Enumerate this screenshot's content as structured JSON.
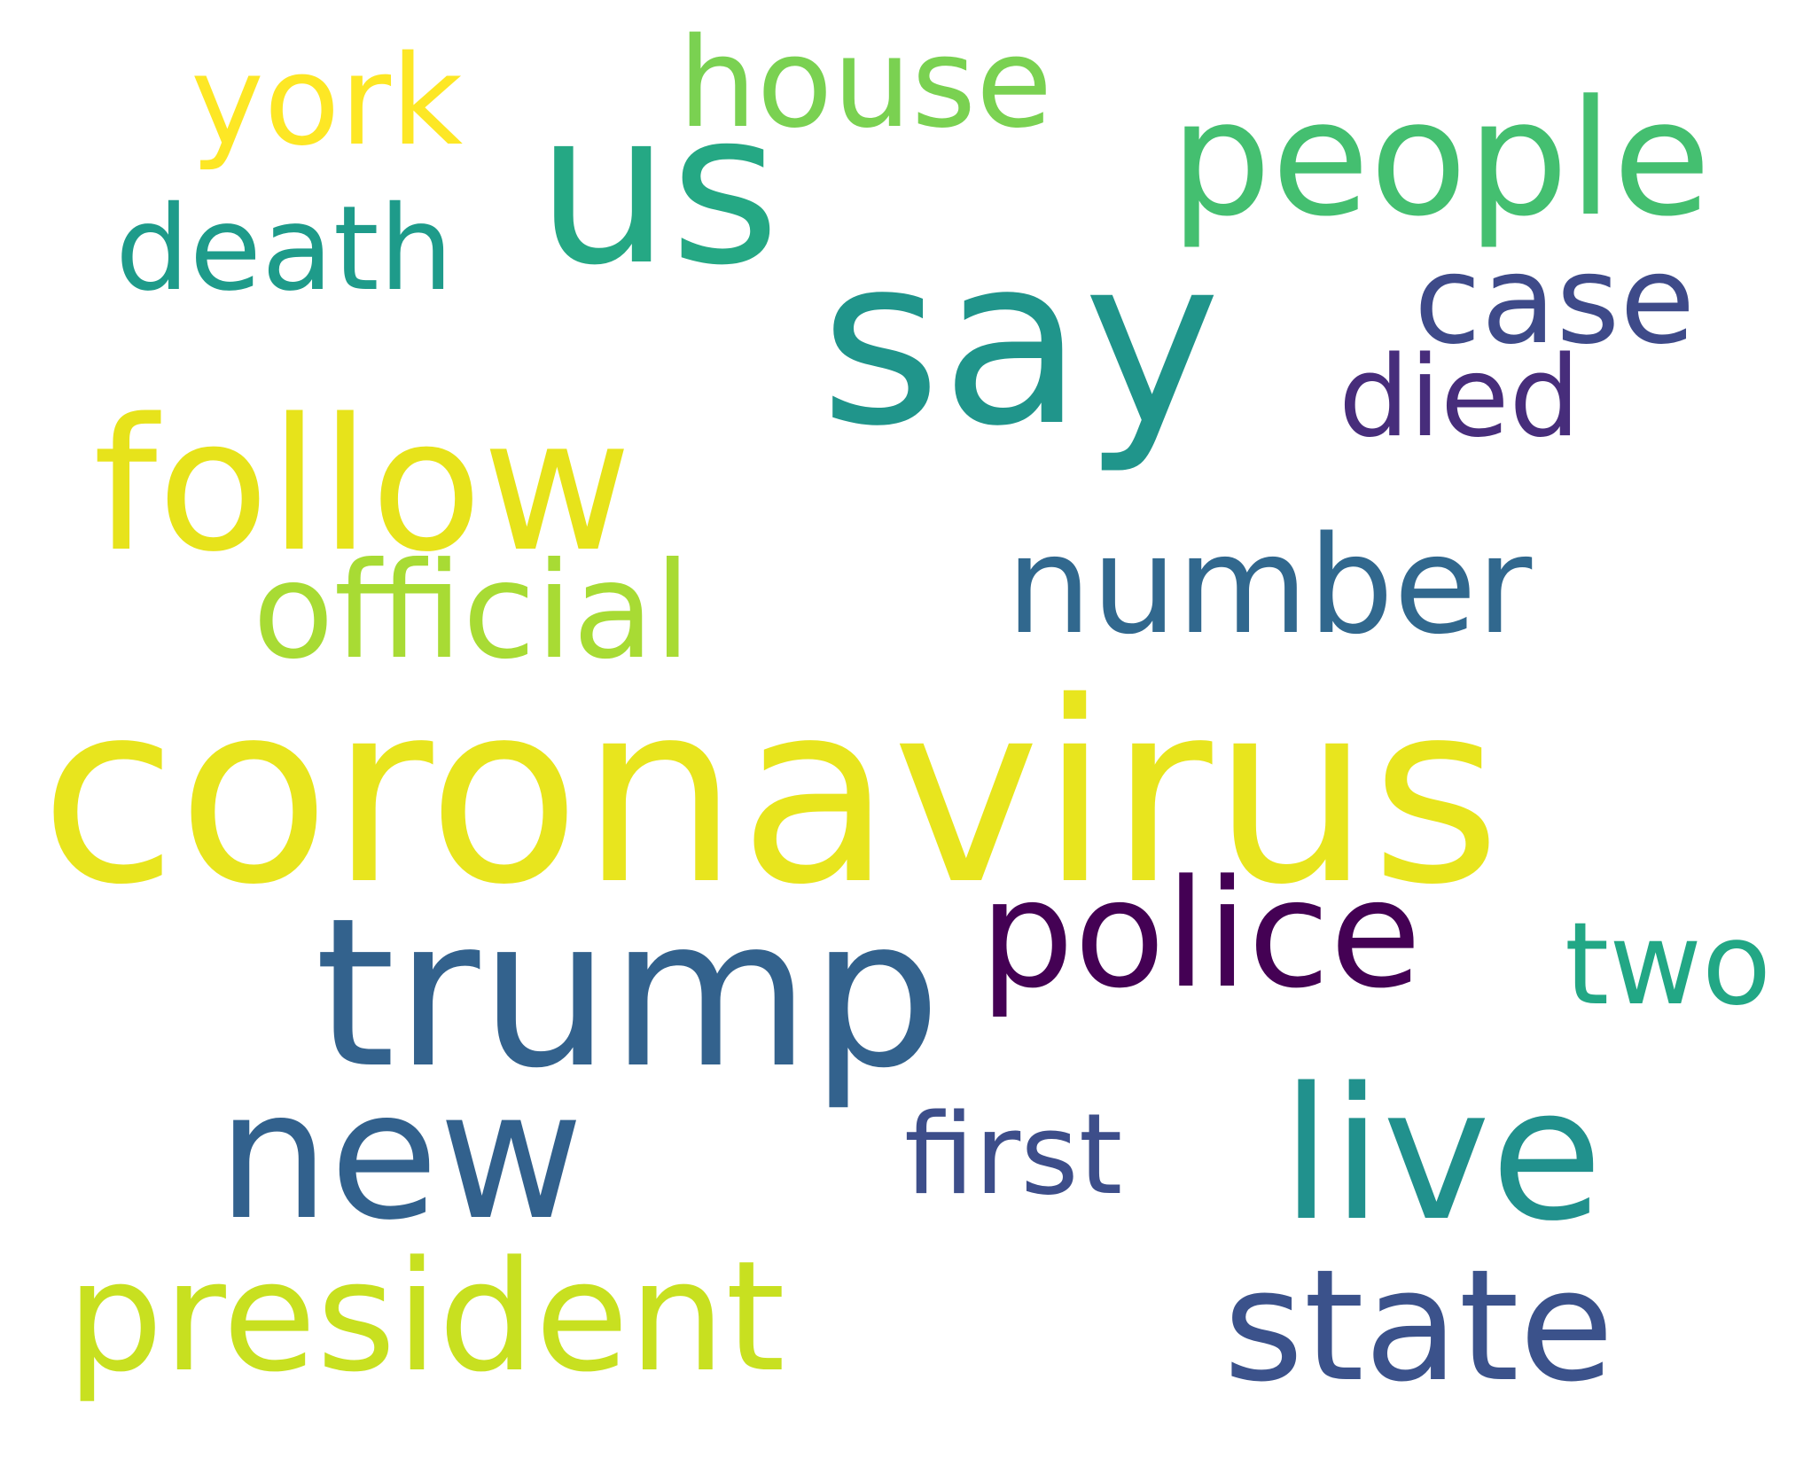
{
  "word_cloud": {
    "words": [
      {
        "id": "coronavirus",
        "text": "coronavirus",
        "color": "#e8e51e"
      },
      {
        "id": "say",
        "text": "say",
        "color": "#20958b"
      },
      {
        "id": "us",
        "text": "us",
        "color": "#25a884"
      },
      {
        "id": "trump",
        "text": "trump",
        "color": "#33628d"
      },
      {
        "id": "follow",
        "text": "follow",
        "color": "#e7e31b"
      },
      {
        "id": "live",
        "text": "live",
        "color": "#21918d"
      },
      {
        "id": "new",
        "text": "new",
        "color": "#32618d"
      },
      {
        "id": "people",
        "text": "people",
        "color": "#44bf70"
      },
      {
        "id": "president",
        "text": "president",
        "color": "#c8e020"
      },
      {
        "id": "state",
        "text": "state",
        "color": "#3b528b"
      },
      {
        "id": "police",
        "text": "police",
        "color": "#440154"
      },
      {
        "id": "number",
        "text": "number",
        "color": "#31688e"
      },
      {
        "id": "official",
        "text": "official",
        "color": "#a8db34"
      },
      {
        "id": "death",
        "text": "death",
        "color": "#1e9b8a"
      },
      {
        "id": "house",
        "text": "house",
        "color": "#7ad151"
      },
      {
        "id": "york",
        "text": "york",
        "color": "#fde725"
      },
      {
        "id": "case",
        "text": "case",
        "color": "#3e4a89"
      },
      {
        "id": "died",
        "text": "died",
        "color": "#472d7b"
      },
      {
        "id": "first",
        "text": "first",
        "color": "#3d4e8a"
      },
      {
        "id": "two",
        "text": "two",
        "color": "#22a785"
      }
    ]
  }
}
